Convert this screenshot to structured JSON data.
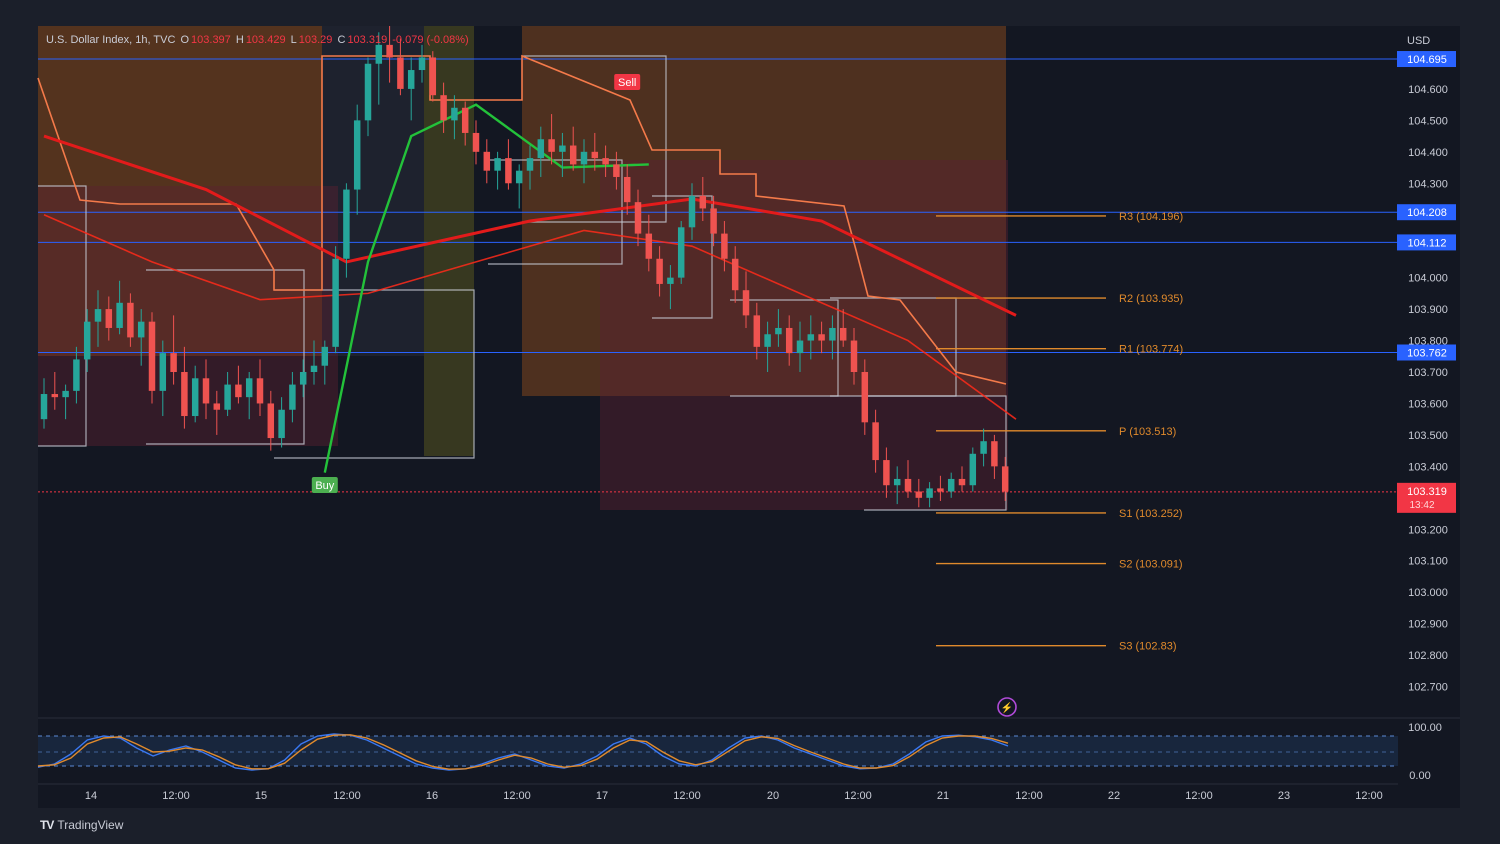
{
  "header": {
    "symbol": "U.S. Dollar Index, 1h, TVC",
    "o_label": "O",
    "o_value": "103.397",
    "h_label": "H",
    "h_value": "103.429",
    "l_label": "L",
    "l_value": "103.29",
    "c_label": "C",
    "c_value": "103.319",
    "change": "-0.079 (-0.08%)"
  },
  "brand": {
    "logo": "TV",
    "name": "TradingView"
  },
  "currency": "USD",
  "colors": {
    "background": "#131722",
    "frame": "#1b1f2a",
    "up": "#26a69a",
    "down": "#ef5350",
    "ema_fast": "#ff2a1a",
    "ema_slow": "#e31b1b",
    "green_line": "#23c23a",
    "pivot": "#e08a2c",
    "hline": "#2962ff",
    "orange_zone": "#8a4a1c",
    "olive_zone": "#5c5a1e",
    "red_zone": "#5a2230",
    "stoch_k": "#3a78f2",
    "stoch_d": "#e08a2c"
  },
  "chart_data": {
    "type": "candlestick",
    "title": "U.S. Dollar Index, 1h, TVC",
    "y_range": [
      102.6,
      104.8
    ],
    "y_ticks": [
      "104.600",
      "104.500",
      "104.400",
      "104.300",
      "104.000",
      "103.900",
      "103.800",
      "103.700",
      "103.600",
      "103.500",
      "103.400",
      "103.200",
      "103.100",
      "103.000",
      "102.900",
      "102.800",
      "102.700"
    ],
    "x_ticks": [
      "14",
      "12:00",
      "15",
      "12:00",
      "16",
      "12:00",
      "17",
      "12:00",
      "20",
      "12:00",
      "21",
      "12:00",
      "22",
      "12:00",
      "23",
      "12:00"
    ],
    "x_range_bars": [
      0,
      156
    ],
    "candles": [
      [
        103.55,
        103.68,
        103.52,
        103.63
      ],
      [
        103.63,
        103.7,
        103.58,
        103.62
      ],
      [
        103.62,
        103.66,
        103.55,
        103.64
      ],
      [
        103.64,
        103.78,
        103.6,
        103.74
      ],
      [
        103.74,
        103.9,
        103.7,
        103.86
      ],
      [
        103.86,
        103.96,
        103.78,
        103.9
      ],
      [
        103.9,
        103.94,
        103.8,
        103.84
      ],
      [
        103.84,
        103.99,
        103.82,
        103.92
      ],
      [
        103.92,
        103.95,
        103.78,
        103.81
      ],
      [
        103.81,
        103.9,
        103.72,
        103.86
      ],
      [
        103.86,
        103.89,
        103.6,
        103.64
      ],
      [
        103.64,
        103.8,
        103.56,
        103.76
      ],
      [
        103.76,
        103.88,
        103.66,
        103.7
      ],
      [
        103.7,
        103.78,
        103.52,
        103.56
      ],
      [
        103.56,
        103.72,
        103.54,
        103.68
      ],
      [
        103.68,
        103.74,
        103.55,
        103.6
      ],
      [
        103.6,
        103.64,
        103.5,
        103.58
      ],
      [
        103.58,
        103.7,
        103.56,
        103.66
      ],
      [
        103.66,
        103.72,
        103.6,
        103.62
      ],
      [
        103.62,
        103.7,
        103.55,
        103.68
      ],
      [
        103.68,
        103.74,
        103.56,
        103.6
      ],
      [
        103.6,
        103.64,
        103.45,
        103.49
      ],
      [
        103.49,
        103.62,
        103.46,
        103.58
      ],
      [
        103.58,
        103.7,
        103.54,
        103.66
      ],
      [
        103.66,
        103.74,
        103.62,
        103.7
      ],
      [
        103.7,
        103.8,
        103.66,
        103.72
      ],
      [
        103.72,
        103.8,
        103.66,
        103.78
      ],
      [
        103.78,
        104.1,
        103.76,
        104.06
      ],
      [
        104.06,
        104.3,
        104.0,
        104.28
      ],
      [
        104.28,
        104.55,
        104.2,
        104.5
      ],
      [
        104.5,
        104.7,
        104.45,
        104.68
      ],
      [
        104.68,
        104.78,
        104.55,
        104.74
      ],
      [
        104.74,
        104.8,
        104.62,
        104.7
      ],
      [
        104.7,
        104.76,
        104.58,
        104.6
      ],
      [
        104.6,
        104.7,
        104.5,
        104.66
      ],
      [
        104.66,
        104.74,
        104.62,
        104.7
      ],
      [
        104.7,
        104.72,
        104.56,
        104.58
      ],
      [
        104.58,
        104.62,
        104.46,
        104.5
      ],
      [
        104.5,
        104.58,
        104.44,
        104.54
      ],
      [
        104.54,
        104.56,
        104.42,
        104.46
      ],
      [
        104.46,
        104.5,
        104.36,
        104.4
      ],
      [
        104.4,
        104.44,
        104.3,
        104.34
      ],
      [
        104.34,
        104.4,
        104.28,
        104.38
      ],
      [
        104.38,
        104.44,
        104.28,
        104.3
      ],
      [
        104.3,
        104.36,
        104.22,
        104.34
      ],
      [
        104.34,
        104.42,
        104.28,
        104.38
      ],
      [
        104.38,
        104.48,
        104.32,
        104.44
      ],
      [
        104.44,
        104.52,
        104.36,
        104.4
      ],
      [
        104.4,
        104.46,
        104.32,
        104.42
      ],
      [
        104.42,
        104.48,
        104.34,
        104.36
      ],
      [
        104.36,
        104.44,
        104.3,
        104.4
      ],
      [
        104.4,
        104.46,
        104.34,
        104.38
      ],
      [
        104.38,
        104.42,
        104.32,
        104.36
      ],
      [
        104.36,
        104.4,
        104.28,
        104.32
      ],
      [
        104.32,
        104.36,
        104.2,
        104.24
      ],
      [
        104.24,
        104.28,
        104.1,
        104.14
      ],
      [
        104.14,
        104.2,
        104.02,
        104.06
      ],
      [
        104.06,
        104.1,
        103.94,
        103.98
      ],
      [
        103.98,
        104.04,
        103.9,
        104.0
      ],
      [
        104.0,
        104.18,
        103.98,
        104.16
      ],
      [
        104.16,
        104.3,
        104.12,
        104.26
      ],
      [
        104.26,
        104.32,
        104.18,
        104.22
      ],
      [
        104.22,
        104.26,
        104.1,
        104.14
      ],
      [
        104.14,
        104.18,
        104.02,
        104.06
      ],
      [
        104.06,
        104.1,
        103.92,
        103.96
      ],
      [
        103.96,
        104.02,
        103.84,
        103.88
      ],
      [
        103.88,
        103.92,
        103.74,
        103.78
      ],
      [
        103.78,
        103.86,
        103.7,
        103.82
      ],
      [
        103.82,
        103.9,
        103.78,
        103.84
      ],
      [
        103.84,
        103.88,
        103.72,
        103.76
      ],
      [
        103.76,
        103.86,
        103.7,
        103.8
      ],
      [
        103.8,
        103.88,
        103.74,
        103.82
      ],
      [
        103.82,
        103.86,
        103.76,
        103.8
      ],
      [
        103.8,
        103.88,
        103.74,
        103.84
      ],
      [
        103.84,
        103.9,
        103.78,
        103.8
      ],
      [
        103.8,
        103.84,
        103.66,
        103.7
      ],
      [
        103.7,
        103.74,
        103.5,
        103.54
      ],
      [
        103.54,
        103.58,
        103.38,
        103.42
      ],
      [
        103.42,
        103.46,
        103.3,
        103.34
      ],
      [
        103.34,
        103.4,
        103.28,
        103.36
      ],
      [
        103.36,
        103.42,
        103.3,
        103.32
      ],
      [
        103.32,
        103.36,
        103.27,
        103.3
      ],
      [
        103.3,
        103.35,
        103.27,
        103.33
      ],
      [
        103.33,
        103.37,
        103.29,
        103.32
      ],
      [
        103.32,
        103.38,
        103.3,
        103.36
      ],
      [
        103.36,
        103.4,
        103.32,
        103.34
      ],
      [
        103.34,
        103.46,
        103.32,
        103.44
      ],
      [
        103.44,
        103.52,
        103.4,
        103.48
      ],
      [
        103.48,
        103.5,
        103.36,
        103.4
      ],
      [
        103.4,
        103.43,
        103.29,
        103.32
      ]
    ],
    "ema_20": [
      [
        0,
        104.2
      ],
      [
        10,
        104.05
      ],
      [
        20,
        103.93
      ],
      [
        30,
        103.95
      ],
      [
        40,
        104.05
      ],
      [
        50,
        104.15
      ],
      [
        60,
        104.1
      ],
      [
        70,
        103.95
      ],
      [
        80,
        103.8
      ],
      [
        90,
        103.55
      ]
    ],
    "ema_50": [
      [
        0,
        104.45
      ],
      [
        15,
        104.28
      ],
      [
        28,
        104.05
      ],
      [
        45,
        104.18
      ],
      [
        60,
        104.25
      ],
      [
        72,
        104.18
      ],
      [
        90,
        103.88
      ]
    ],
    "green_line": [
      [
        26,
        103.38
      ],
      [
        30,
        104.05
      ],
      [
        34,
        104.45
      ],
      [
        40,
        104.55
      ],
      [
        48,
        104.35
      ],
      [
        56,
        104.36
      ]
    ],
    "pivots": [
      {
        "label": "R3 (104.196)",
        "value": 104.196
      },
      {
        "label": "R2 (103.935)",
        "value": 103.935
      },
      {
        "label": "R1 (103.774)",
        "value": 103.774
      },
      {
        "label": "P (103.513)",
        "value": 103.513
      },
      {
        "label": "S1 (103.252)",
        "value": 103.252
      },
      {
        "label": "S2 (103.091)",
        "value": 103.091
      },
      {
        "label": "S3 (102.83)",
        "value": 102.83
      }
    ],
    "levels": [
      {
        "label": "104.695",
        "value": 104.695
      },
      {
        "label": "104.208",
        "value": 104.208
      },
      {
        "label": "104.112",
        "value": 104.112
      },
      {
        "label": "103.762",
        "value": 103.762
      }
    ],
    "last_price": {
      "label": "103.319",
      "timer": "13:42",
      "value": 103.319
    },
    "signals": [
      {
        "label": "Buy",
        "bar": 26,
        "value": 103.38
      },
      {
        "label": "Sell",
        "bar": 54,
        "value": 104.7
      }
    ],
    "oscillator": {
      "y_ticks": [
        "100.00",
        "0.00"
      ],
      "range": [
        0,
        100
      ],
      "k": [
        12,
        20,
        45,
        80,
        90,
        85,
        60,
        40,
        55,
        65,
        50,
        30,
        10,
        5,
        8,
        30,
        70,
        90,
        95,
        92,
        80,
        60,
        40,
        20,
        10,
        5,
        8,
        20,
        35,
        45,
        30,
        15,
        10,
        20,
        40,
        70,
        85,
        70,
        40,
        20,
        15,
        30,
        60,
        85,
        90,
        80,
        60,
        45,
        30,
        15,
        8,
        10,
        20,
        45,
        75,
        90,
        92,
        88,
        80,
        65
      ],
      "d": [
        15,
        18,
        35,
        70,
        85,
        88,
        70,
        50,
        52,
        60,
        55,
        38,
        18,
        8,
        8,
        22,
        55,
        82,
        92,
        93,
        85,
        68,
        48,
        28,
        14,
        7,
        8,
        16,
        30,
        42,
        35,
        20,
        12,
        16,
        32,
        60,
        80,
        76,
        50,
        28,
        18,
        26,
        52,
        78,
        88,
        84,
        66,
        50,
        35,
        20,
        10,
        10,
        16,
        38,
        66,
        85,
        90,
        90,
        84,
        72
      ]
    }
  }
}
